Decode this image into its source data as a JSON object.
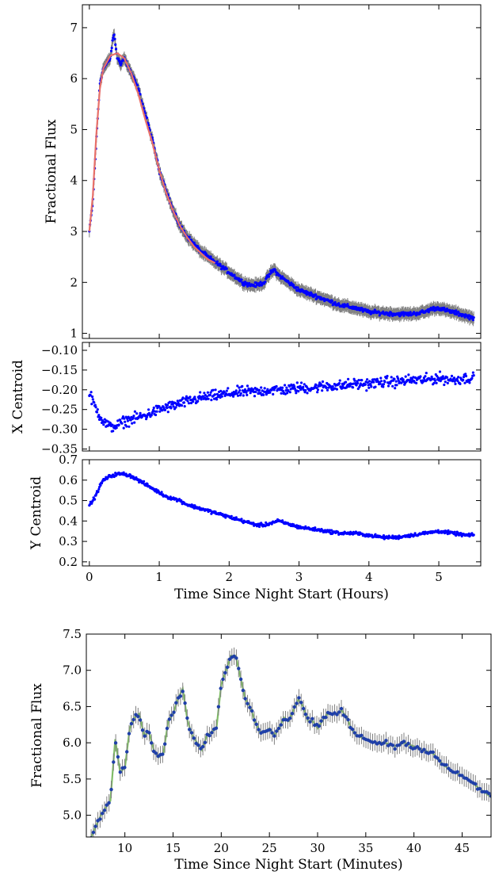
{
  "chart_data": [
    {
      "type": "scatter",
      "panel": "flux-hours",
      "ylabel": "Fractional Flux",
      "xlim": [
        -0.1,
        5.6
      ],
      "ylim": [
        0.9,
        7.45
      ],
      "yticks": [
        1,
        2,
        3,
        4,
        5,
        6,
        7
      ],
      "yticklabels": [
        "1",
        "2",
        "3",
        "4",
        "5",
        "6",
        "7"
      ],
      "xtick_values": [
        0,
        1,
        2,
        3,
        4,
        5
      ],
      "colors": {
        "points": "#0000ff",
        "errorbars": "#808080",
        "model": "#e8706a"
      },
      "series": [
        {
          "kind": "data",
          "x": [
            0.0,
            0.05,
            0.1,
            0.15,
            0.2,
            0.25,
            0.3,
            0.35,
            0.4,
            0.45,
            0.5,
            0.6,
            0.7,
            0.8,
            0.9,
            1.0,
            1.1,
            1.2,
            1.3,
            1.4,
            1.5,
            1.6,
            1.7,
            1.8,
            1.9,
            2.0,
            2.1,
            2.2,
            2.3,
            2.4,
            2.5,
            2.6,
            2.65,
            2.7,
            2.8,
            2.9,
            3.0,
            3.2,
            3.4,
            3.6,
            3.8,
            4.0,
            4.2,
            4.4,
            4.6,
            4.8,
            4.9,
            5.0,
            5.1,
            5.2,
            5.3,
            5.4,
            5.5
          ],
          "y": [
            3.0,
            3.6,
            4.8,
            5.9,
            6.2,
            6.3,
            6.4,
            6.9,
            6.4,
            6.3,
            6.4,
            6.1,
            5.8,
            5.3,
            4.8,
            4.2,
            3.8,
            3.4,
            3.1,
            2.9,
            2.75,
            2.6,
            2.5,
            2.4,
            2.3,
            2.2,
            2.1,
            2.0,
            1.95,
            1.95,
            2.0,
            2.2,
            2.25,
            2.15,
            2.05,
            1.95,
            1.85,
            1.75,
            1.65,
            1.55,
            1.5,
            1.42,
            1.4,
            1.38,
            1.38,
            1.42,
            1.48,
            1.5,
            1.45,
            1.42,
            1.38,
            1.34,
            1.3
          ],
          "error": 0.12
        },
        {
          "kind": "model",
          "x": [
            0.0,
            0.05,
            0.1,
            0.15,
            0.2,
            0.3,
            0.4,
            0.5,
            0.6,
            0.7,
            0.8,
            0.9,
            1.0,
            1.1,
            1.2,
            1.3,
            1.4,
            1.5,
            1.6,
            1.7,
            1.8
          ],
          "y": [
            3.0,
            3.7,
            4.9,
            5.8,
            6.2,
            6.45,
            6.5,
            6.4,
            6.1,
            5.7,
            5.2,
            4.75,
            4.2,
            3.75,
            3.4,
            3.1,
            2.88,
            2.7,
            2.57,
            2.45,
            2.38
          ]
        }
      ]
    },
    {
      "type": "scatter",
      "panel": "x-centroid",
      "ylabel": "X Centroid",
      "xlim": [
        -0.1,
        5.6
      ],
      "ylim": [
        -0.355,
        -0.08
      ],
      "yticks": [
        -0.35,
        -0.3,
        -0.25,
        -0.2,
        -0.15,
        -0.1
      ],
      "yticklabels": [
        "−0.35",
        "−0.30",
        "−0.25",
        "−0.20",
        "−0.15",
        "−0.10"
      ],
      "xtick_values": [
        0,
        1,
        2,
        3,
        4,
        5
      ],
      "series": [
        {
          "kind": "data",
          "x": [
            0.0,
            0.1,
            0.2,
            0.3,
            0.4,
            0.5,
            0.6,
            0.8,
            1.0,
            1.2,
            1.4,
            1.6,
            1.8,
            2.0,
            2.2,
            2.4,
            2.6,
            2.8,
            3.0,
            3.2,
            3.4,
            3.6,
            3.8,
            4.0,
            4.2,
            4.4,
            4.6,
            4.8,
            5.0,
            5.2,
            5.4,
            5.5
          ],
          "y": [
            -0.21,
            -0.25,
            -0.28,
            -0.295,
            -0.29,
            -0.28,
            -0.275,
            -0.265,
            -0.25,
            -0.24,
            -0.23,
            -0.22,
            -0.215,
            -0.21,
            -0.205,
            -0.205,
            -0.2,
            -0.2,
            -0.195,
            -0.195,
            -0.19,
            -0.19,
            -0.185,
            -0.185,
            -0.18,
            -0.18,
            -0.175,
            -0.175,
            -0.17,
            -0.175,
            -0.17,
            -0.17
          ],
          "scatter": 0.02
        }
      ]
    },
    {
      "type": "scatter",
      "panel": "y-centroid",
      "ylabel": "Y Centroid",
      "xlabel": "Time Since Night Start (Hours)",
      "xlim": [
        -0.1,
        5.6
      ],
      "ylim": [
        0.18,
        0.7
      ],
      "yticks": [
        0.2,
        0.3,
        0.4,
        0.5,
        0.6,
        0.7
      ],
      "yticklabels": [
        "0.2",
        "0.3",
        "0.4",
        "0.5",
        "0.6",
        "0.7"
      ],
      "xticks": [
        0,
        1,
        2,
        3,
        4,
        5
      ],
      "xticklabels": [
        "0",
        "1",
        "2",
        "3",
        "4",
        "5"
      ],
      "series": [
        {
          "kind": "data",
          "x": [
            0.0,
            0.05,
            0.1,
            0.15,
            0.2,
            0.3,
            0.4,
            0.5,
            0.6,
            0.7,
            0.8,
            0.9,
            1.0,
            1.1,
            1.2,
            1.3,
            1.4,
            1.6,
            1.8,
            2.0,
            2.2,
            2.4,
            2.5,
            2.6,
            2.7,
            2.8,
            3.0,
            3.2,
            3.4,
            3.6,
            3.8,
            4.0,
            4.2,
            4.4,
            4.6,
            4.8,
            5.0,
            5.2,
            5.4,
            5.5
          ],
          "y": [
            0.48,
            0.5,
            0.53,
            0.57,
            0.6,
            0.62,
            0.63,
            0.63,
            0.62,
            0.6,
            0.58,
            0.56,
            0.54,
            0.52,
            0.51,
            0.5,
            0.48,
            0.46,
            0.44,
            0.42,
            0.4,
            0.38,
            0.38,
            0.39,
            0.4,
            0.39,
            0.37,
            0.36,
            0.35,
            0.34,
            0.34,
            0.33,
            0.32,
            0.32,
            0.33,
            0.34,
            0.35,
            0.34,
            0.33,
            0.33
          ],
          "scatter": 0.012
        }
      ]
    },
    {
      "type": "scatter",
      "panel": "flux-minutes",
      "ylabel": "Fractional Flux",
      "xlabel": "Time Since Night Start (Minutes)",
      "xlim": [
        6,
        48
      ],
      "ylim": [
        4.7,
        7.5
      ],
      "yticks": [
        5.0,
        5.5,
        6.0,
        6.5,
        7.0,
        7.5
      ],
      "yticklabels": [
        "5.0",
        "5.5",
        "6.0",
        "6.5",
        "7.0",
        "7.5"
      ],
      "xticks": [
        10,
        15,
        20,
        25,
        30,
        35,
        40,
        45
      ],
      "xticklabels": [
        "10",
        "15",
        "20",
        "25",
        "30",
        "35",
        "40",
        "45"
      ],
      "colors": {
        "points": "#1f3fa8",
        "errorbars": "#808080",
        "line": "#6ab04c"
      },
      "series": [
        {
          "kind": "data",
          "x": [
            6.5,
            7.0,
            7.5,
            8.0,
            8.5,
            9.0,
            9.5,
            10.0,
            10.5,
            11.0,
            11.5,
            12.0,
            12.5,
            13.0,
            13.5,
            14.0,
            14.5,
            15.0,
            15.5,
            16.0,
            16.5,
            17.0,
            17.5,
            18.0,
            18.5,
            19.0,
            19.5,
            20.0,
            20.5,
            21.0,
            21.5,
            22.0,
            22.5,
            23.0,
            23.5,
            24.0,
            24.5,
            25.0,
            25.5,
            26.0,
            26.5,
            27.0,
            27.5,
            28.0,
            28.5,
            29.0,
            29.5,
            30.0,
            30.5,
            31.0,
            31.5,
            32.0,
            32.5,
            33.0,
            33.5,
            34.0,
            35.0,
            36.0,
            37.0,
            38.0,
            39.0,
            40.0,
            41.0,
            42.0,
            43.0,
            44.0,
            45.0,
            46.0,
            47.0,
            48.0
          ],
          "y": [
            4.7,
            4.85,
            5.0,
            5.1,
            5.2,
            6.05,
            5.6,
            5.65,
            6.2,
            6.35,
            6.4,
            6.1,
            6.15,
            5.9,
            5.8,
            5.85,
            6.3,
            6.4,
            6.6,
            6.75,
            6.3,
            6.1,
            6.0,
            5.9,
            6.1,
            6.15,
            6.2,
            6.8,
            7.0,
            7.2,
            7.2,
            6.9,
            6.6,
            6.5,
            6.3,
            6.15,
            6.15,
            6.2,
            6.1,
            6.2,
            6.35,
            6.3,
            6.45,
            6.6,
            6.5,
            6.3,
            6.3,
            6.2,
            6.3,
            6.4,
            6.4,
            6.4,
            6.45,
            6.35,
            6.2,
            6.1,
            6.05,
            6.0,
            6.0,
            5.95,
            6.0,
            5.95,
            5.9,
            5.85,
            5.7,
            5.6,
            5.55,
            5.45,
            5.35,
            5.25
          ],
          "error": 0.12
        }
      ]
    }
  ]
}
